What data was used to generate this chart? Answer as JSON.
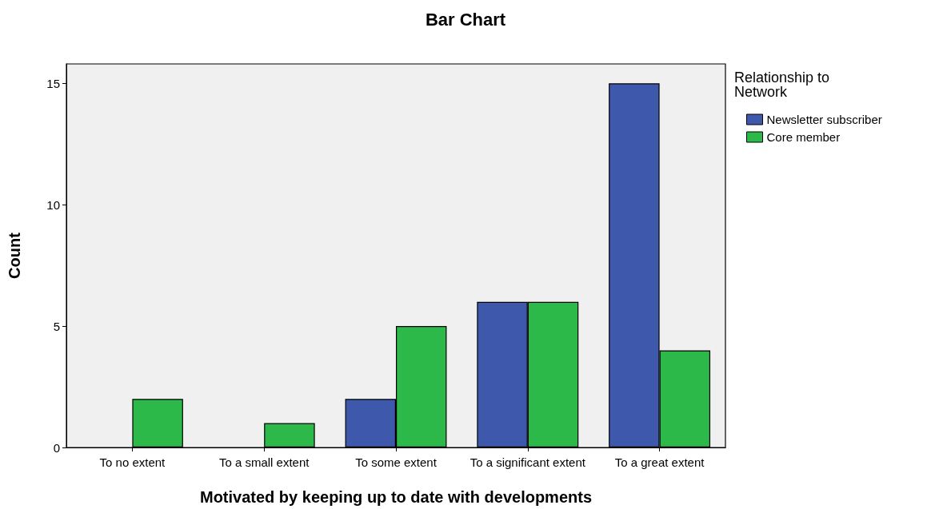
{
  "chart_data": {
    "type": "bar",
    "title": "Bar Chart",
    "xlabel": "Motivated by keeping up to date with developments",
    "ylabel": "Count",
    "legend_title": "Relationship to Network",
    "categories": [
      "To no extent",
      "To a small extent",
      "To some extent",
      "To a significant extent",
      "To a great extent"
    ],
    "series": [
      {
        "name": "Newsletter subscriber",
        "color": "#3e58ac",
        "values": [
          null,
          null,
          2,
          6,
          15
        ]
      },
      {
        "name": "Core member",
        "color": "#2db84a",
        "values": [
          2,
          1,
          5,
          6,
          4
        ]
      }
    ],
    "ylim": [
      0,
      15.8
    ],
    "yticks": [
      0,
      5,
      10,
      15
    ],
    "grid": false,
    "legend": "right"
  }
}
